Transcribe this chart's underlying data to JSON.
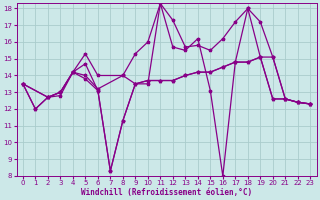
{
  "bg_color": "#cce8e8",
  "grid_color": "#aacccc",
  "line_color": "#880088",
  "xlim": [
    -0.5,
    23.5
  ],
  "ylim": [
    8,
    18.3
  ],
  "yticks": [
    8,
    9,
    10,
    11,
    12,
    13,
    14,
    15,
    16,
    17,
    18
  ],
  "xticks": [
    0,
    1,
    2,
    3,
    4,
    5,
    6,
    7,
    8,
    9,
    10,
    11,
    12,
    13,
    14,
    15,
    16,
    17,
    18,
    19,
    20,
    21,
    22,
    23
  ],
  "xlabel": "Windchill (Refroidissement éolien,°C)",
  "series1_x": [
    0,
    1,
    2,
    3,
    4,
    5,
    6,
    7,
    8,
    9,
    10,
    11,
    12,
    13,
    14,
    15,
    16,
    17,
    18,
    19,
    20,
    21,
    22,
    23
  ],
  "series1_y": [
    13.5,
    12.0,
    12.7,
    12.8,
    14.2,
    14.7,
    13.1,
    8.3,
    11.3,
    13.5,
    13.5,
    18.3,
    15.7,
    15.5,
    16.2,
    13.1,
    8.0,
    14.8,
    18.0,
    15.1,
    12.6,
    12.6,
    12.4,
    12.3
  ],
  "series2_x": [
    0,
    1,
    2,
    3,
    4,
    5,
    6,
    7,
    8,
    9,
    10,
    11,
    12,
    13,
    14,
    15,
    16,
    17,
    18,
    19,
    20,
    21,
    22,
    23
  ],
  "series2_y": [
    13.5,
    12.0,
    12.7,
    13.0,
    14.2,
    13.8,
    13.1,
    8.3,
    11.3,
    13.5,
    13.7,
    13.7,
    13.7,
    14.0,
    14.2,
    14.2,
    14.5,
    14.8,
    14.8,
    15.1,
    12.6,
    12.6,
    12.4,
    12.3
  ],
  "series3_x": [
    0,
    2,
    3,
    4,
    5,
    6,
    8,
    9,
    10,
    11,
    12,
    13,
    14,
    15,
    16,
    17,
    18,
    19,
    20,
    21,
    22,
    23
  ],
  "series3_y": [
    13.5,
    12.7,
    13.0,
    14.2,
    15.3,
    14.0,
    14.0,
    15.3,
    16.0,
    18.3,
    17.3,
    15.7,
    15.8,
    15.5,
    16.2,
    17.2,
    18.0,
    17.2,
    15.1,
    12.6,
    12.4,
    12.3
  ],
  "series4_x": [
    0,
    2,
    3,
    4,
    5,
    6,
    8,
    9,
    10,
    11,
    12,
    13,
    14,
    15,
    16,
    17,
    18,
    19,
    20,
    21,
    22,
    23
  ],
  "series4_y": [
    13.5,
    12.7,
    13.0,
    14.2,
    14.0,
    13.2,
    14.0,
    13.5,
    13.7,
    13.7,
    13.7,
    14.0,
    14.2,
    14.2,
    14.5,
    14.8,
    14.8,
    15.1,
    15.1,
    12.6,
    12.4,
    12.3
  ]
}
